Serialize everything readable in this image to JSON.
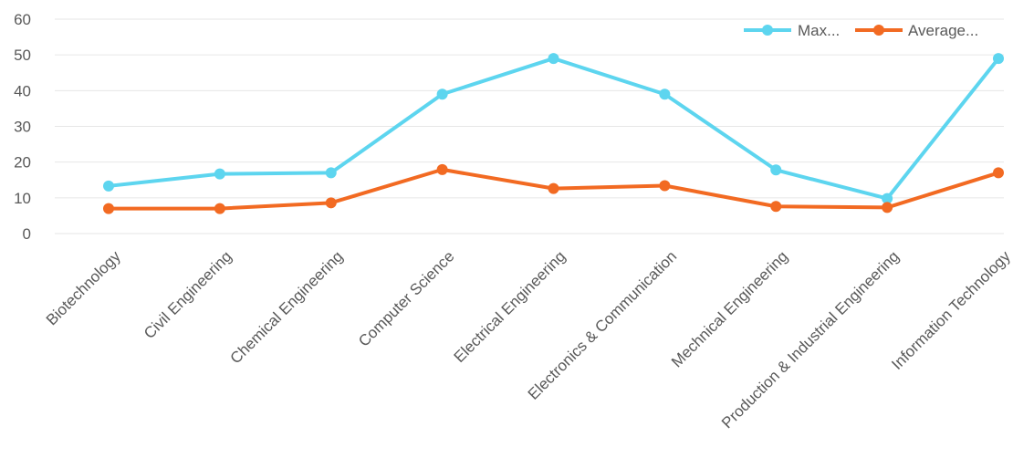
{
  "chart_data": {
    "type": "line",
    "title": "",
    "xlabel": "",
    "ylabel": "",
    "ylim": [
      0,
      60
    ],
    "yticks": [
      0,
      10,
      20,
      30,
      40,
      50,
      60
    ],
    "grid": true,
    "legend_position": "top-right",
    "categories": [
      "Biotechnology",
      "Civil Engineering",
      "Chemical Engineering",
      "Computer Science",
      "Electrical Engineering",
      "Electronics & Communication",
      "Mechnical Engineering",
      "Production & Industrial Engineering",
      "Information Technology"
    ],
    "series": [
      {
        "name": "Max...",
        "color": "#5dd5ef",
        "values": [
          13.3,
          16.7,
          17,
          39,
          49,
          39,
          17.8,
          9.8,
          49
        ]
      },
      {
        "name": "Average...",
        "color": "#f26a22",
        "values": [
          7,
          7,
          8.6,
          17.9,
          12.6,
          13.4,
          7.6,
          7.3,
          17
        ]
      }
    ]
  }
}
